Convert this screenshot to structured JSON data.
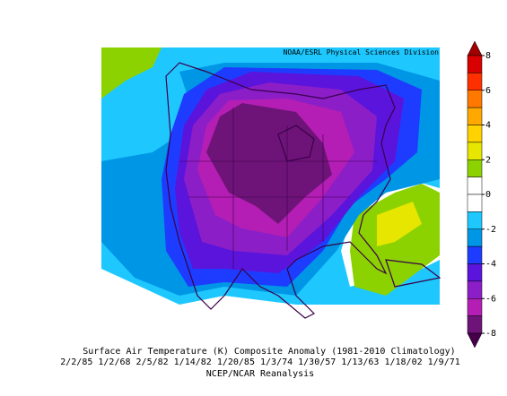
{
  "header": {
    "credit": "NOAA/ESRL Physical Sciences Division"
  },
  "caption": {
    "title": "Surface Air Temperature (K) Composite Anomaly (1981-2010 Climatology)",
    "dates": "2/2/85 1/2/68 2/5/82 1/14/82 1/20/85 1/3/74 1/30/57 1/13/63 1/18/02 1/9/71",
    "source": "NCEP/NCAR Reanalysis"
  },
  "colorbar": {
    "ticks": [
      8,
      6,
      4,
      2,
      0,
      -2,
      -4,
      -6,
      -8
    ],
    "colors": [
      "#a00000",
      "#d80000",
      "#ff3000",
      "#ff7800",
      "#ffa800",
      "#ffd200",
      "#e6e600",
      "#8cd200",
      "#ffffff",
      "#ffffff",
      "#1ec8ff",
      "#0096e6",
      "#1e3cff",
      "#5a14dc",
      "#8c1ec8",
      "#b41eb4",
      "#6e1478",
      "#46004b"
    ]
  }
}
